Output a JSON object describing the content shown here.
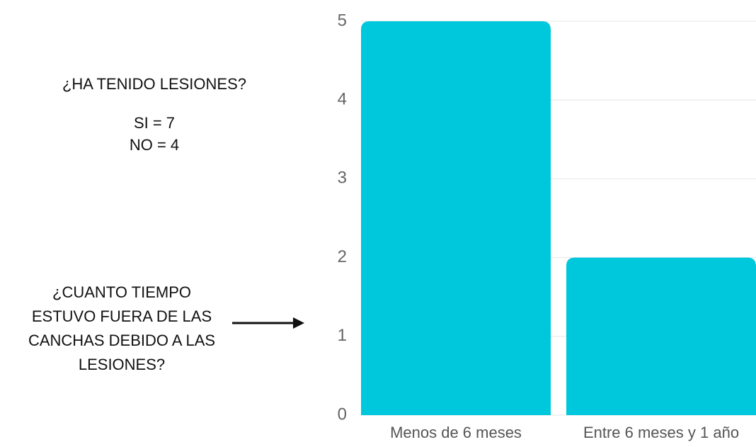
{
  "chart_data": {
    "type": "bar",
    "categories": [
      "Menos de 6 meses",
      "Entre 6 meses y 1 año"
    ],
    "values": [
      5,
      2
    ],
    "color": "#00c8dc",
    "ylim": [
      0,
      5
    ],
    "yticks": [
      0,
      1,
      2,
      3,
      4,
      5
    ],
    "grid": true,
    "annotations": [
      "¿HA TENIDO LESIONES?",
      "SI = 7",
      "NO = 4",
      "¿CUANTO TIEMPO",
      "ESTUVO FUERA DE LAS",
      "CANCHAS DEBIDO A LAS",
      "LESIONES?"
    ]
  }
}
